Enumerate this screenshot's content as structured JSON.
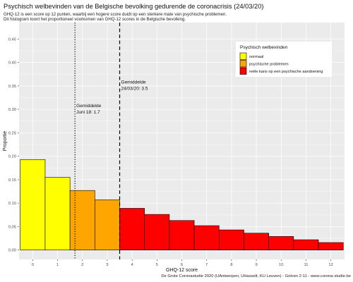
{
  "header": {
    "title": "Psychisch welbevinden van de Belgische bevolking gedurende de coronacrisis (24/03/20)",
    "subtitle_lines": [
      "GHQ-12 is een score op 12 punten, waarbij een hogere score duidt op een sterkere mate van psychische problemen.",
      "Dit histogram toont het proportioneel voorkomen van GHQ-12 scores in de Belgische bevolking."
    ]
  },
  "caption": "De Grote Coronastudie 2020 (UAntwerpen, UHasselt, KU Leuven) - Golven 2-11 - www.corona-studie.be",
  "colors": {
    "panel_bg": "#ebebeb",
    "grid": "#ffffff",
    "normaal": "#ffff00",
    "psychische_problemen": "#ffa500",
    "reele_kans": "#ff0000",
    "bar_outline": "#000000"
  },
  "chart_data": {
    "type": "bar",
    "xlabel": "GHQ-12 score",
    "ylabel": "Proportie",
    "xlim": [
      -0.55,
      12.55
    ],
    "ylim": [
      -0.02,
      0.485
    ],
    "x_ticks": [
      0,
      1,
      2,
      3,
      4,
      5,
      6,
      7,
      8,
      9,
      10,
      11,
      12
    ],
    "y_ticks": [
      0.0,
      0.05,
      0.1,
      0.15,
      0.2,
      0.25,
      0.3,
      0.35,
      0.4,
      0.45
    ],
    "y_tick_labels": [
      "0.00",
      "0.05",
      "0.10",
      "0.15",
      "0.20",
      "0.25",
      "0.30",
      "0.35",
      "0.40",
      "0.45"
    ],
    "grid": true,
    "bars": [
      {
        "x": 0,
        "value": 0.193,
        "group": "normaal"
      },
      {
        "x": 1,
        "value": 0.155,
        "group": "normaal"
      },
      {
        "x": 2,
        "value": 0.127,
        "group": "psychische_problemen"
      },
      {
        "x": 3,
        "value": 0.107,
        "group": "psychische_problemen"
      },
      {
        "x": 4,
        "value": 0.089,
        "group": "reele_kans"
      },
      {
        "x": 5,
        "value": 0.076,
        "group": "reele_kans"
      },
      {
        "x": 6,
        "value": 0.063,
        "group": "reele_kans"
      },
      {
        "x": 7,
        "value": 0.052,
        "group": "reele_kans"
      },
      {
        "x": 8,
        "value": 0.043,
        "group": "reele_kans"
      },
      {
        "x": 9,
        "value": 0.036,
        "group": "reele_kans"
      },
      {
        "x": 10,
        "value": 0.029,
        "group": "reele_kans"
      },
      {
        "x": 11,
        "value": 0.022,
        "group": "reele_kans"
      },
      {
        "x": 12,
        "value": 0.016,
        "group": "reele_kans"
      }
    ],
    "reference_lines": [
      {
        "x": 1.7,
        "style": "dotted",
        "label_lines": [
          "Gemiddelde",
          "Juni 18: 1.7"
        ],
        "label_y": 0.305
      },
      {
        "x": 3.5,
        "style": "dashed",
        "label_lines": [
          "Gemiddelde",
          "24/03/20: 3.5"
        ],
        "label_y": 0.355
      }
    ],
    "legend": {
      "title": "Psychisch welbevinden",
      "position": "top-right",
      "items": [
        {
          "group": "normaal",
          "label": "normaal"
        },
        {
          "group": "psychische_problemen",
          "label": "psychische problemen"
        },
        {
          "group": "reele_kans",
          "label": "reële kans op een psychische aandoening"
        }
      ]
    }
  }
}
